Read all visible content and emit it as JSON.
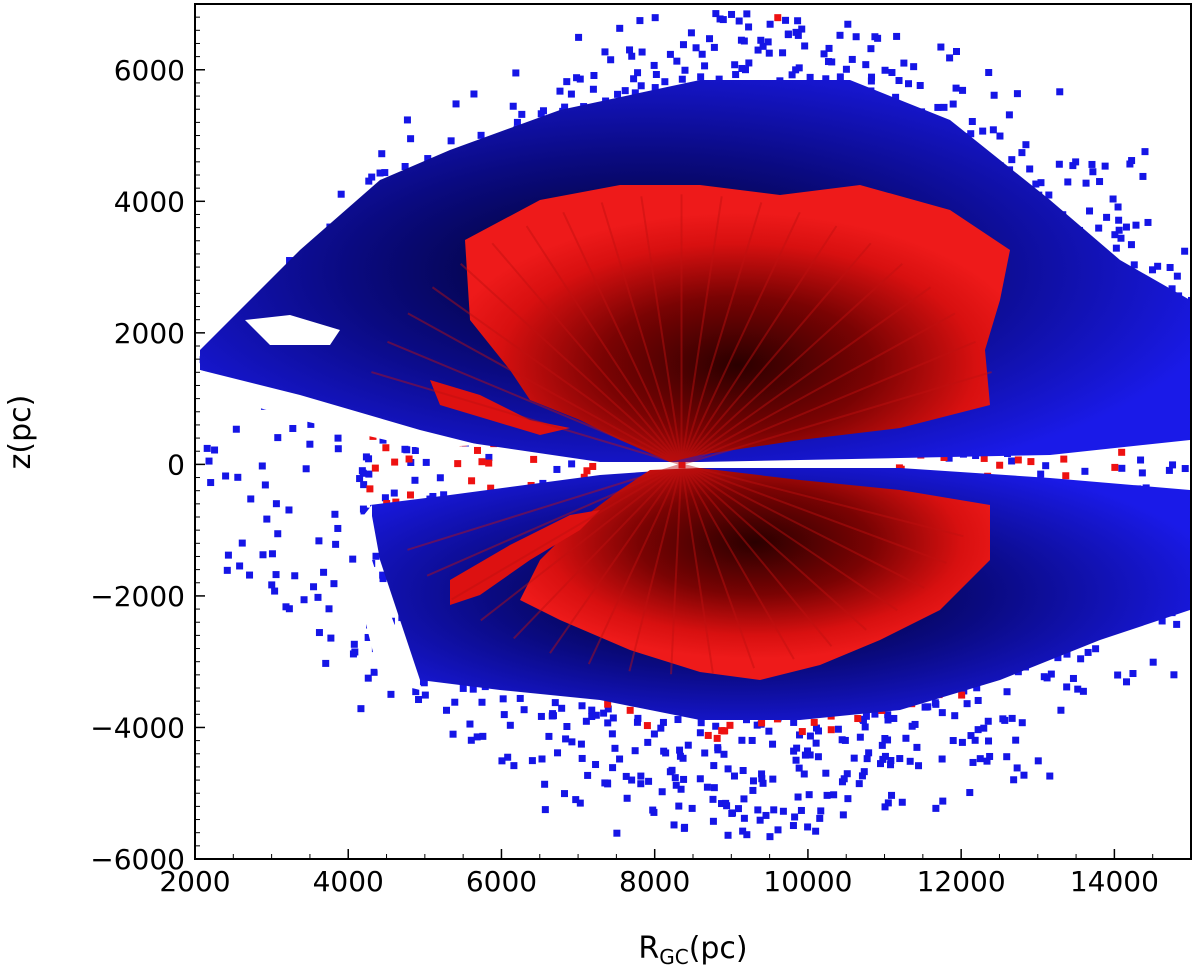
{
  "chart_data": {
    "type": "scatter",
    "title": "",
    "xlabel_main": "R",
    "xlabel_sub": "GC",
    "xlabel_unit": "(pc)",
    "ylabel": "z(pc)",
    "xlim": [
      2000,
      15000
    ],
    "ylim": [
      -6000,
      7000
    ],
    "xticks": [
      2000,
      4000,
      6000,
      8000,
      10000,
      12000,
      14000
    ],
    "yticks": [
      -6000,
      -4000,
      -2000,
      0,
      2000,
      4000,
      6000
    ],
    "xtick_labels": [
      "2000",
      "4000",
      "6000",
      "8000",
      "10000",
      "12000",
      "14000"
    ],
    "ytick_labels": [
      "−6000",
      "−4000",
      "−2000",
      "0",
      "2000",
      "4000",
      "6000"
    ],
    "grid": false,
    "colors": {
      "outer": "#1010e0",
      "inner": "#ee1111",
      "core": "#200000"
    },
    "series": [
      {
        "color": "blue",
        "point_estimates": [
          [
            2100,
            1600
          ],
          [
            3000,
            2000
          ],
          [
            3500,
            3000
          ],
          [
            4000,
            3800
          ],
          [
            5000,
            4200
          ],
          [
            6000,
            5000
          ],
          [
            7000,
            6500
          ],
          [
            8000,
            6800
          ],
          [
            9500,
            6700
          ],
          [
            11000,
            6000
          ],
          [
            12500,
            5000
          ],
          [
            14000,
            3500
          ],
          [
            15000,
            2500
          ],
          [
            15000,
            -1500
          ],
          [
            14500,
            -3000
          ],
          [
            13000,
            -4500
          ],
          [
            11000,
            -5200
          ],
          [
            9000,
            -5300
          ],
          [
            7500,
            -5600
          ],
          [
            6000,
            -4500
          ],
          [
            5000,
            -3500
          ],
          [
            4300,
            -1500
          ],
          [
            4200,
            -700
          ]
        ]
      },
      {
        "color": "red",
        "point_estimates": [
          [
            5600,
            3200
          ],
          [
            6500,
            3700
          ],
          [
            8000,
            4100
          ],
          [
            9500,
            4200
          ],
          [
            10500,
            4000
          ],
          [
            11500,
            3300
          ],
          [
            12500,
            1500
          ],
          [
            8350,
            0
          ],
          [
            5500,
            -2000
          ],
          [
            7000,
            -1200
          ],
          [
            9000,
            -2800
          ],
          [
            11000,
            -2600
          ],
          [
            12300,
            -700
          ],
          [
            3500,
            1200
          ],
          [
            12000,
            -3500
          ],
          [
            9600,
            6800
          ]
        ]
      }
    ]
  }
}
